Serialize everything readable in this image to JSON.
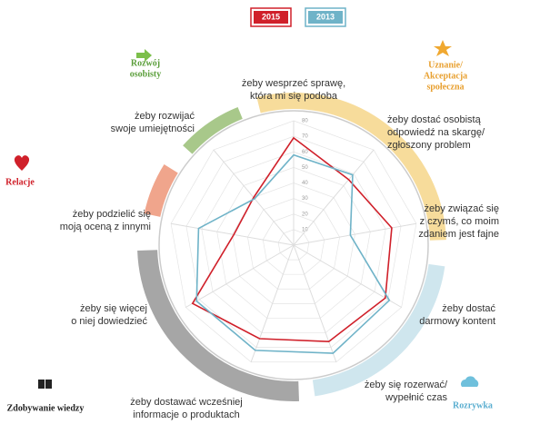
{
  "chart_data": {
    "type": "radar",
    "categories": [
      [
        "żeby wesprzeć sprawę,",
        "która mi się podoba"
      ],
      [
        "żeby dostać osobistą",
        "odpowiedź na skargę/",
        "zgłoszony problem"
      ],
      [
        "żeby związać się",
        "z czymś, co moim",
        "zdaniem jest fajne"
      ],
      [
        "żeby dostać",
        "darmowy kontent"
      ],
      [
        "żeby się rozerwać/",
        "wypełnić czas"
      ],
      [
        "żeby dostawać wcześniej",
        "informacje o produktach"
      ],
      [
        "żeby się więcej",
        "o niej dowiedzieć"
      ],
      [
        "żeby podzielić się",
        "moją oceną z innymi"
      ],
      [
        "żeby rozwijać",
        "swoje umiejętności"
      ]
    ],
    "series": [
      {
        "name": "2015",
        "color": "#d0202a",
        "values": [
          69,
          55,
          64,
          68,
          66,
          64,
          75,
          39,
          40
        ]
      },
      {
        "name": "2013",
        "color": "#6fb3c8",
        "values": [
          58,
          59,
          37,
          71,
          74,
          72,
          72,
          62,
          39
        ]
      }
    ],
    "ylim": [
      0,
      80
    ],
    "yticks": [
      10,
      20,
      30,
      40,
      50,
      60,
      70,
      80
    ],
    "groups": [
      {
        "label": [
          "Rozwój",
          "osobisty"
        ],
        "color": "#a8c88a"
      },
      {
        "label": [
          "Uznanie/",
          "Akceptacja",
          "społeczna"
        ],
        "color": "#f7dc9b"
      },
      {
        "label": [
          "Rozrywka"
        ],
        "color": "#cfe6ee"
      },
      {
        "label": [
          "Zdobywanie wiedzy"
        ],
        "color": "#a6a6a6"
      },
      {
        "label": [
          "Relacje"
        ],
        "color": "#f0a58c"
      }
    ]
  }
}
